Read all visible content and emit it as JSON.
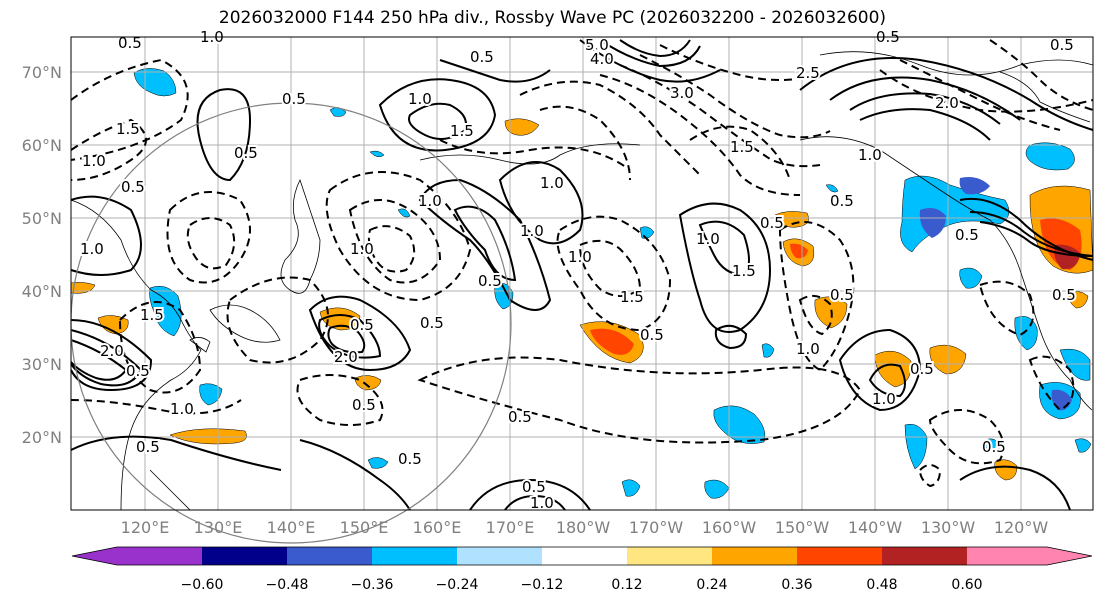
{
  "title": "2026032000 F144 250 hPa div., Rossby Wave PC (2026032200 - 2026032600)",
  "lon_labels": [
    "120°E",
    "130°E",
    "140°E",
    "150°E",
    "160°E",
    "170°E",
    "180°W",
    "170°W",
    "160°W",
    "150°W",
    "140°W",
    "130°W",
    "120°W"
  ],
  "lat_labels": [
    "70°N",
    "60°N",
    "50°N",
    "40°N",
    "30°N",
    "20°N"
  ],
  "colorbar": {
    "levels": [
      "−0.60",
      "−0.48",
      "−0.36",
      "−0.24",
      "−0.12",
      "0.12",
      "0.24",
      "0.36",
      "0.48",
      "0.60"
    ],
    "colors": [
      "#9932cc",
      "#00008b",
      "#3a5bcd",
      "#00bfff",
      "#b0e2ff",
      "#ffffff",
      "#ffe680",
      "#ffa500",
      "#ff4500",
      "#b22222",
      "#ff85b0"
    ],
    "left_extend_color": "#9932cc",
    "right_extend_color": "#ff85b0"
  },
  "contour_labels": [
    "0.5",
    "5.0",
    "4.0",
    "3.0",
    "2.5",
    "2.0",
    "1.5",
    "1.0",
    "0.5",
    "1.0",
    "0.5",
    "1.5",
    "0.5",
    "1.0",
    "0.5",
    "1.0",
    "0.5",
    "1.0",
    "1.5",
    "0.5",
    "2.0",
    "0.5",
    "1.0",
    "0.5",
    "0.5",
    "1.0",
    "1.5",
    "0.5",
    "1.0",
    "0.5",
    "0.5",
    "1.0",
    "0.5",
    "1.0",
    "0.5",
    "1.5",
    "0.5",
    "2.0",
    "1.0",
    "0.5",
    "1.0",
    "0.5",
    "0.5",
    "1.5",
    "0.5",
    "1.0",
    "0.5",
    "1.0",
    "0.5",
    "0.5",
    "0.5",
    "1.0"
  ],
  "legend_colors": {
    "contour": "#000000",
    "grid": "#b0b0b0",
    "circle": "#808080"
  }
}
